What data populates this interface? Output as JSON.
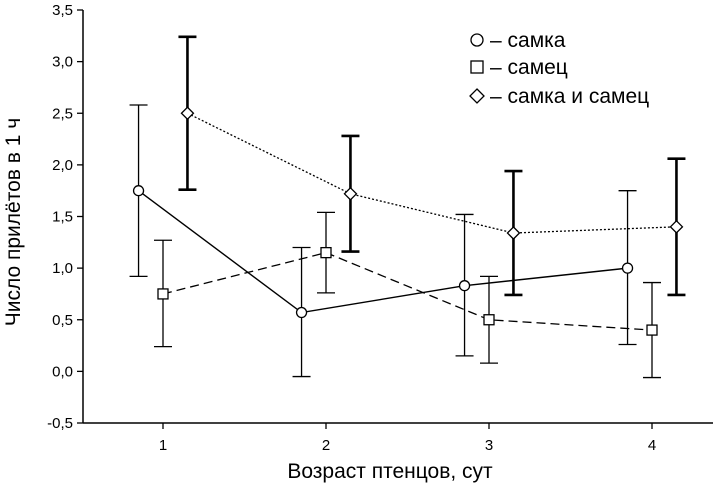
{
  "chart_data": {
    "type": "line",
    "xlabel": "Возраст птенцов, сут",
    "ylabel": "Число прилётов в 1 ч",
    "categories": [
      "1",
      "2",
      "3",
      "4"
    ],
    "yticks": [
      "-0,5",
      "0,0",
      "0,5",
      "1,0",
      "1,5",
      "2,0",
      "2,5",
      "3,0",
      "3,5"
    ],
    "ylim": [
      -0.5,
      3.5
    ],
    "grid": false,
    "legend_position": "top-right",
    "series": [
      {
        "name": "– самка",
        "marker": "circle",
        "line_style": "solid",
        "error_bar_weight": "thin",
        "x_offset": -0.15,
        "values": [
          1.75,
          0.57,
          0.83,
          1.0
        ],
        "error_low": [
          0.92,
          -0.05,
          0.15,
          0.26
        ],
        "error_high": [
          2.58,
          1.2,
          1.52,
          1.75
        ]
      },
      {
        "name": "– самец",
        "marker": "square",
        "line_style": "dashed",
        "error_bar_weight": "thin",
        "x_offset": 0.0,
        "values": [
          0.75,
          1.15,
          0.5,
          0.4
        ],
        "error_low": [
          0.24,
          0.76,
          0.08,
          -0.06
        ],
        "error_high": [
          1.27,
          1.54,
          0.92,
          0.86
        ]
      },
      {
        "name": "– самка и самец",
        "marker": "diamond",
        "line_style": "dotted",
        "error_bar_weight": "bold",
        "x_offset": 0.15,
        "values": [
          2.5,
          1.72,
          1.34,
          1.4
        ],
        "error_low": [
          1.76,
          1.16,
          0.74,
          0.74
        ],
        "error_high": [
          3.24,
          2.28,
          1.94,
          2.06
        ]
      }
    ]
  }
}
